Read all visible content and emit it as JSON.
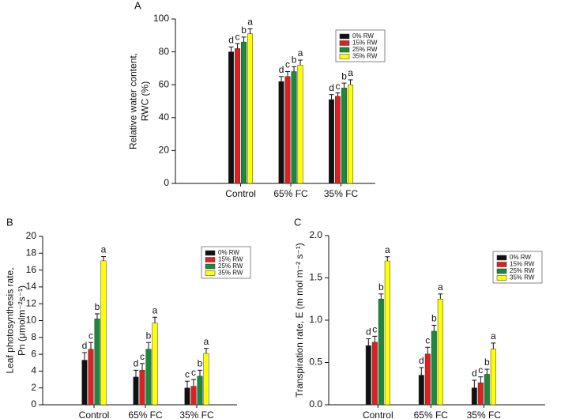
{
  "chart_data": [
    {
      "type": "bar",
      "panel_label": "A",
      "ylabel": [
        "Relative water content,",
        "RWC (%)"
      ],
      "categories": [
        "Control",
        "65% FC",
        "35% FC"
      ],
      "ylim": [
        0,
        100
      ],
      "yticks": [
        0,
        20,
        40,
        60,
        80,
        100
      ],
      "legend": "upper right",
      "series": [
        {
          "name": "0% RW",
          "color": "#111111",
          "values": [
            80,
            62,
            51
          ],
          "errors": [
            3,
            3,
            3
          ],
          "letters": [
            "d",
            "d",
            "d"
          ]
        },
        {
          "name": "15% RW",
          "color": "#e02020",
          "values": [
            82,
            65,
            53
          ],
          "errors": [
            3,
            3,
            2
          ],
          "letters": [
            "c",
            "c",
            "c"
          ]
        },
        {
          "name": "25% RW",
          "color": "#1a8a3a",
          "values": [
            86,
            68,
            58
          ],
          "errors": [
            3,
            3,
            3
          ],
          "letters": [
            "b",
            "b",
            "b"
          ]
        },
        {
          "name": "35% RW",
          "color": "#ffff00",
          "values": [
            91,
            72,
            60
          ],
          "errors": [
            3,
            3,
            3
          ],
          "letters": [
            "a",
            "a",
            "a"
          ]
        }
      ]
    },
    {
      "type": "bar",
      "panel_label": "B",
      "ylabel": [
        "Leaf photosynthesis rate,",
        "Pn (μmolm⁻²s⁻¹)"
      ],
      "categories": [
        "Control",
        "65% FC",
        "35% FC"
      ],
      "ylim": [
        0,
        20
      ],
      "yticks": [
        0,
        2,
        4,
        6,
        8,
        10,
        12,
        14,
        16,
        18,
        20
      ],
      "legend": "upper right",
      "series": [
        {
          "name": "0% RW",
          "color": "#111111",
          "values": [
            5.3,
            3.3,
            2.0
          ],
          "errors": [
            0.9,
            0.8,
            0.8
          ],
          "letters": [
            "d",
            "d",
            "c"
          ]
        },
        {
          "name": "15% RW",
          "color": "#e02020",
          "values": [
            6.6,
            4.1,
            2.2
          ],
          "errors": [
            0.8,
            0.8,
            0.8
          ],
          "letters": [
            "c",
            "c",
            "c"
          ]
        },
        {
          "name": "25% RW",
          "color": "#1a8a3a",
          "values": [
            10.2,
            6.6,
            3.4
          ],
          "errors": [
            0.6,
            0.8,
            0.7
          ],
          "letters": [
            "b",
            "b",
            "b"
          ]
        },
        {
          "name": "35% RW",
          "color": "#ffff00",
          "values": [
            17.1,
            9.7,
            6.1
          ],
          "errors": [
            0.5,
            0.7,
            0.6
          ],
          "letters": [
            "a",
            "a",
            "a"
          ]
        }
      ]
    },
    {
      "type": "bar",
      "panel_label": "C",
      "ylabel": [
        "Transpiration rate, E (m mol m⁻² s⁻¹)"
      ],
      "categories": [
        "Control",
        "65% FC",
        "35% FC"
      ],
      "ylim": [
        0,
        2
      ],
      "yticks": [
        {
          "value": 0,
          "label": "0.0"
        },
        0.5,
        {
          "value": 1,
          "label": "1.0"
        },
        1.5,
        {
          "value": 2,
          "label": "2.0"
        }
      ],
      "legend": "upper right",
      "series": [
        {
          "name": "0% RW",
          "color": "#111111",
          "values": [
            0.7,
            0.35,
            0.2
          ],
          "errors": [
            0.08,
            0.09,
            0.09
          ],
          "letters": [
            "d",
            "d",
            "d"
          ]
        },
        {
          "name": "15% RW",
          "color": "#e02020",
          "values": [
            0.74,
            0.6,
            0.26
          ],
          "errors": [
            0.07,
            0.08,
            0.07
          ],
          "letters": [
            "c",
            "c",
            "c"
          ]
        },
        {
          "name": "25% RW",
          "color": "#1a8a3a",
          "values": [
            1.25,
            0.87,
            0.36
          ],
          "errors": [
            0.06,
            0.07,
            0.06
          ],
          "letters": [
            "b",
            "b",
            "b"
          ]
        },
        {
          "name": "35% RW",
          "color": "#ffff00",
          "values": [
            1.7,
            1.25,
            0.66
          ],
          "errors": [
            0.05,
            0.06,
            0.07
          ],
          "letters": [
            "a",
            "a",
            "a"
          ]
        }
      ]
    }
  ]
}
